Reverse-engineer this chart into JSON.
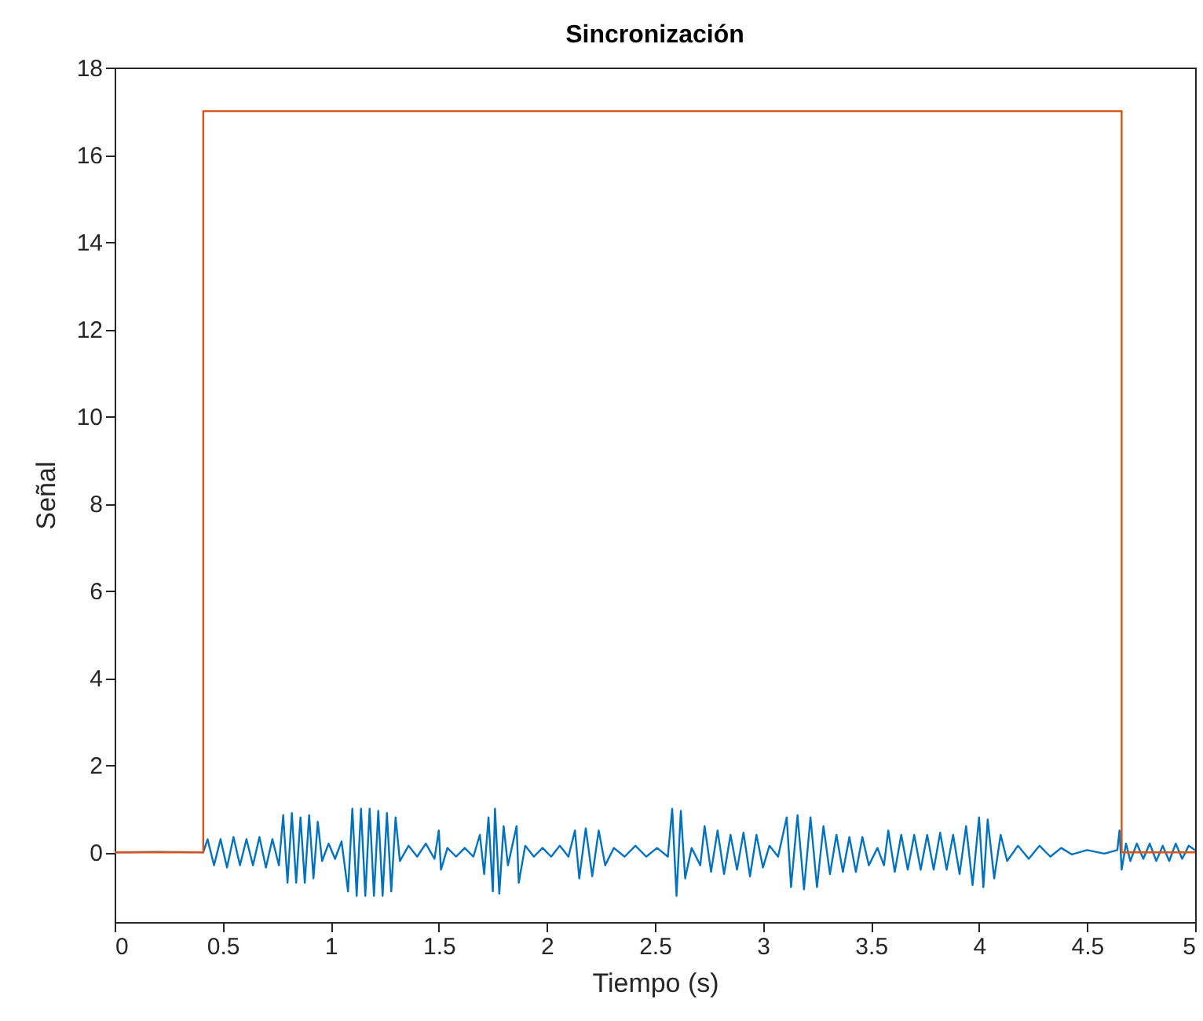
{
  "chart_data": {
    "type": "line",
    "title": "Sincronización",
    "xlabel": "Tiempo (s)",
    "ylabel": "Señal",
    "xlim": [
      0,
      5
    ],
    "xticks": [
      0,
      0.5,
      1,
      1.5,
      2,
      2.5,
      3,
      3.5,
      4,
      4.5,
      5
    ],
    "ylim": [
      -1.6,
      18
    ],
    "yticks": [
      0,
      2,
      4,
      6,
      8,
      10,
      12,
      14,
      16,
      18
    ],
    "grid": false,
    "series": [
      {
        "color": "#0072bd",
        "x": [
          0,
          0.2,
          0.41,
          0.43,
          0.46,
          0.49,
          0.52,
          0.55,
          0.58,
          0.61,
          0.64,
          0.67,
          0.7,
          0.73,
          0.76,
          0.78,
          0.8,
          0.82,
          0.84,
          0.86,
          0.88,
          0.9,
          0.92,
          0.94,
          0.96,
          0.99,
          1.02,
          1.05,
          1.08,
          1.1,
          1.12,
          1.14,
          1.16,
          1.18,
          1.2,
          1.22,
          1.24,
          1.26,
          1.28,
          1.3,
          1.32,
          1.36,
          1.4,
          1.44,
          1.48,
          1.5,
          1.51,
          1.54,
          1.58,
          1.62,
          1.66,
          1.69,
          1.71,
          1.73,
          1.75,
          1.76,
          1.78,
          1.8,
          1.82,
          1.86,
          1.87,
          1.9,
          1.94,
          1.98,
          2.02,
          2.06,
          2.1,
          2.13,
          2.15,
          2.18,
          2.21,
          2.24,
          2.27,
          2.31,
          2.36,
          2.41,
          2.46,
          2.51,
          2.56,
          2.58,
          2.6,
          2.62,
          2.64,
          2.67,
          2.71,
          2.73,
          2.76,
          2.79,
          2.82,
          2.85,
          2.88,
          2.91,
          2.94,
          2.97,
          3.0,
          3.03,
          3.07,
          3.11,
          3.13,
          3.16,
          3.19,
          3.22,
          3.25,
          3.28,
          3.31,
          3.34,
          3.37,
          3.4,
          3.43,
          3.46,
          3.49,
          3.53,
          3.56,
          3.58,
          3.61,
          3.64,
          3.67,
          3.7,
          3.73,
          3.76,
          3.79,
          3.82,
          3.85,
          3.88,
          3.91,
          3.94,
          3.97,
          4.0,
          4.02,
          4.04,
          4.07,
          4.1,
          4.13,
          4.18,
          4.23,
          4.28,
          4.33,
          4.38,
          4.43,
          4.5,
          4.58,
          4.64,
          4.65,
          4.66,
          4.68,
          4.7,
          4.73,
          4.76,
          4.79,
          4.82,
          4.85,
          4.88,
          4.91,
          4.94,
          4.97,
          5.0
        ],
        "values": [
          0,
          0.01,
          0,
          0.3,
          -0.3,
          0.3,
          -0.35,
          0.35,
          -0.3,
          0.3,
          -0.3,
          0.35,
          -0.35,
          0.3,
          -0.3,
          0.85,
          -0.7,
          0.9,
          -0.7,
          0.8,
          -0.7,
          0.85,
          -0.6,
          0.7,
          -0.2,
          0.2,
          -0.15,
          0.25,
          -0.9,
          1.0,
          -1.0,
          1.0,
          -1.0,
          1.0,
          -1.0,
          0.95,
          -1.0,
          0.9,
          -0.9,
          0.8,
          -0.2,
          0.15,
          -0.1,
          0.2,
          -0.15,
          0.5,
          -0.4,
          0.1,
          -0.1,
          0.1,
          -0.1,
          0.4,
          -0.5,
          0.8,
          -0.9,
          1.0,
          -0.95,
          0.6,
          -0.3,
          0.6,
          -0.7,
          0.15,
          -0.1,
          0.1,
          -0.1,
          0.15,
          -0.1,
          0.5,
          -0.6,
          0.55,
          -0.55,
          0.5,
          -0.3,
          0.1,
          -0.1,
          0.15,
          -0.1,
          0.1,
          -0.1,
          1.0,
          -1.0,
          0.95,
          -0.6,
          0.1,
          -0.3,
          0.6,
          -0.45,
          0.5,
          -0.5,
          0.4,
          -0.4,
          0.45,
          -0.55,
          0.4,
          -0.35,
          0.15,
          -0.1,
          0.8,
          -0.8,
          0.85,
          -0.85,
          0.8,
          -0.8,
          0.6,
          -0.5,
          0.4,
          -0.45,
          0.35,
          -0.45,
          0.35,
          -0.3,
          0.1,
          -0.3,
          0.5,
          -0.45,
          0.4,
          -0.4,
          0.4,
          -0.4,
          0.4,
          -0.4,
          0.45,
          -0.4,
          0.4,
          -0.5,
          0.6,
          -0.75,
          0.8,
          -0.8,
          0.75,
          -0.6,
          0.4,
          -0.2,
          0.15,
          -0.15,
          0.15,
          -0.1,
          0.1,
          -0.05,
          0.05,
          -0.03,
          0.05,
          0.5,
          -0.4,
          0.2,
          -0.2,
          0.2,
          -0.15,
          0.2,
          -0.2,
          0.15,
          -0.2,
          0.2,
          -0.15,
          0.15,
          0.05
        ]
      },
      {
        "color": "#d95319",
        "x": [
          0,
          0.41,
          0.41,
          4.66,
          4.66,
          5
        ],
        "values": [
          0,
          0,
          17,
          17,
          0,
          0
        ]
      }
    ]
  }
}
